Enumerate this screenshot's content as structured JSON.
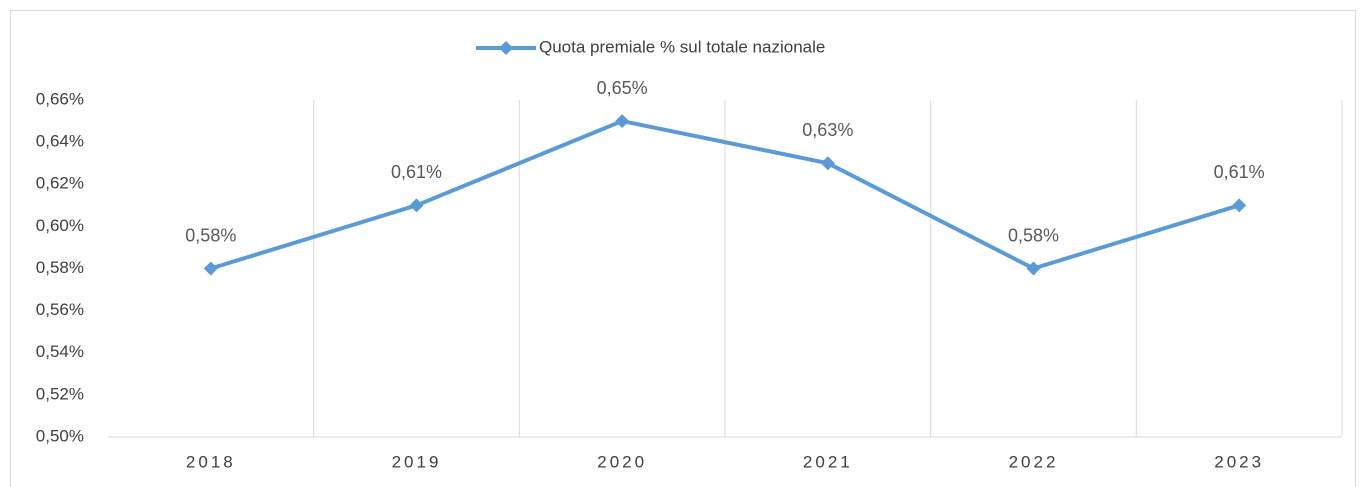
{
  "chart_data": {
    "type": "line",
    "categories": [
      "2018",
      "2019",
      "2020",
      "2021",
      "2022",
      "2023"
    ],
    "series": [
      {
        "name": "Quota premiale % sul totale nazionale",
        "color": "#5b9bd5",
        "values": [
          0.58,
          0.61,
          0.65,
          0.63,
          0.58,
          0.61
        ],
        "value_labels": [
          "0,58%",
          "0,61%",
          "0,65%",
          "0,63%",
          "0,58%",
          "0,61%"
        ]
      }
    ],
    "ylim": [
      0.5,
      0.66
    ],
    "yticks": [
      {
        "value": 0.5,
        "label": "0,50%"
      },
      {
        "value": 0.52,
        "label": "0,52%"
      },
      {
        "value": 0.54,
        "label": "0,54%"
      },
      {
        "value": 0.56,
        "label": "0,56%"
      },
      {
        "value": 0.58,
        "label": "0,58%"
      },
      {
        "value": 0.6,
        "label": "0,60%"
      },
      {
        "value": 0.62,
        "label": "0,62%"
      },
      {
        "value": 0.64,
        "label": "0,64%"
      },
      {
        "value": 0.66,
        "label": "0,66%"
      }
    ],
    "grid": true,
    "legend": "top"
  }
}
